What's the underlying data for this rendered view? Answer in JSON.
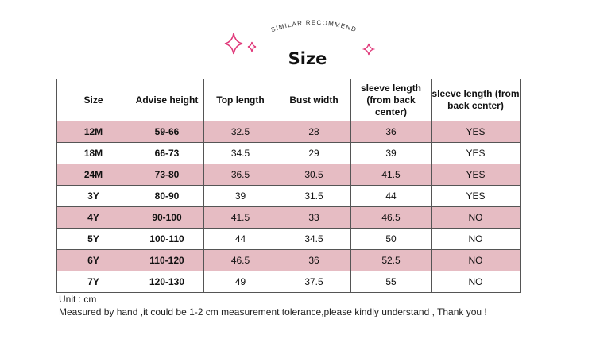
{
  "header": {
    "arc_text": "SIMILAR RECOMMEND",
    "title": "Size",
    "sparkle_color": "#e0397a"
  },
  "table": {
    "columns": [
      "Size",
      "Advise height",
      "Top length",
      "Bust width",
      "sleeve length (from back center)",
      "sleeve length (from back center)"
    ],
    "rows": [
      [
        "12M",
        "59-66",
        "32.5",
        "28",
        "36",
        "YES"
      ],
      [
        "18M",
        "66-73",
        "34.5",
        "29",
        "39",
        "YES"
      ],
      [
        "24M",
        "73-80",
        "36.5",
        "30.5",
        "41.5",
        "YES"
      ],
      [
        "3Y",
        "80-90",
        "39",
        "31.5",
        "44",
        "YES"
      ],
      [
        "4Y",
        "90-100",
        "41.5",
        "33",
        "46.5",
        "NO"
      ],
      [
        "5Y",
        "100-110",
        "44",
        "34.5",
        "50",
        "NO"
      ],
      [
        "6Y",
        "110-120",
        "46.5",
        "36",
        "52.5",
        "NO"
      ],
      [
        "7Y",
        "120-130",
        "49",
        "37.5",
        "55",
        "NO"
      ]
    ],
    "stripe_color": "#e6bcc3"
  },
  "notes": {
    "unit": "Unit : cm",
    "disclaimer": "Measured by hand ,it could be 1-2 cm measurement tolerance,please kindly understand , Thank you !"
  }
}
